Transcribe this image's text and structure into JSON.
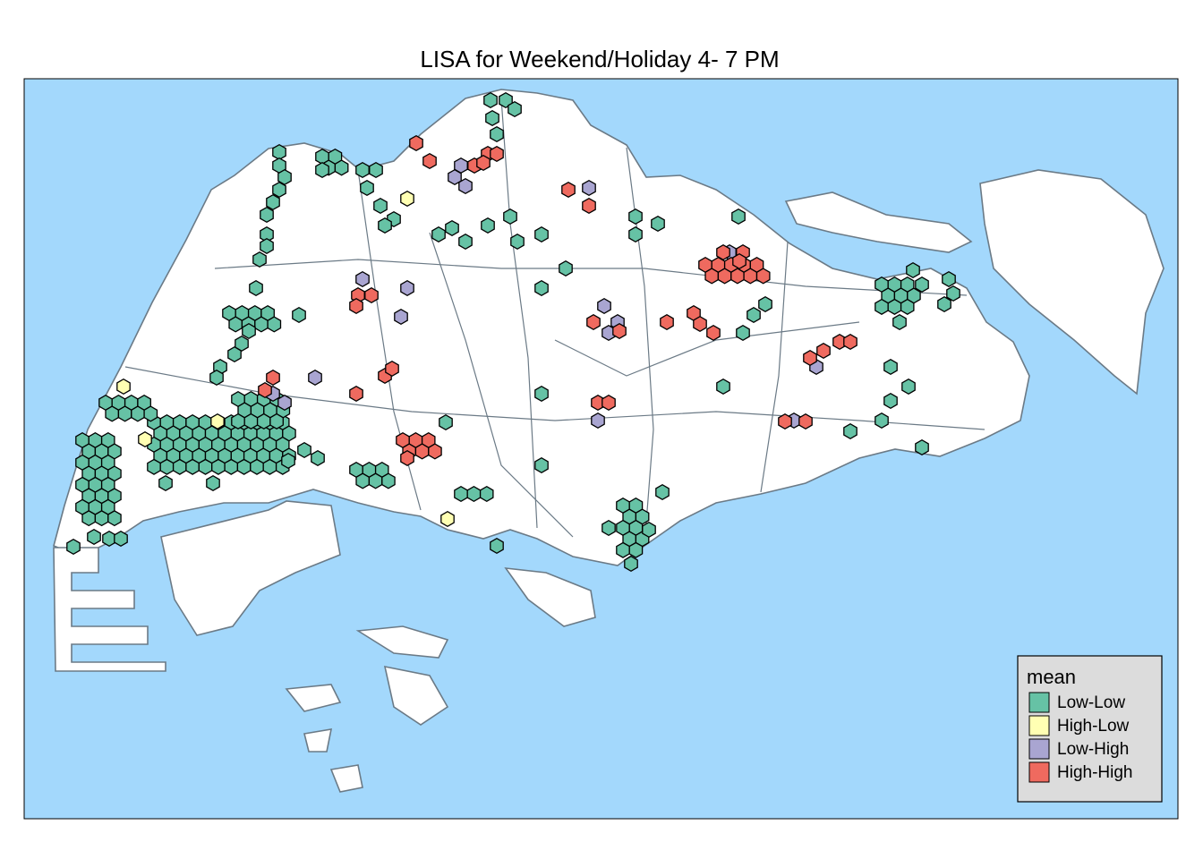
{
  "title": "LISA for Weekend/Holiday 4- 7 PM",
  "legend": {
    "title": "mean",
    "items": [
      {
        "label": "Low-Low",
        "color": "#66c2a5"
      },
      {
        "label": "High-Low",
        "color": "#ffffb3"
      },
      {
        "label": "Low-High",
        "color": "#a9a5d1"
      },
      {
        "label": "High-High",
        "color": "#ef6a5f"
      }
    ]
  }
}
